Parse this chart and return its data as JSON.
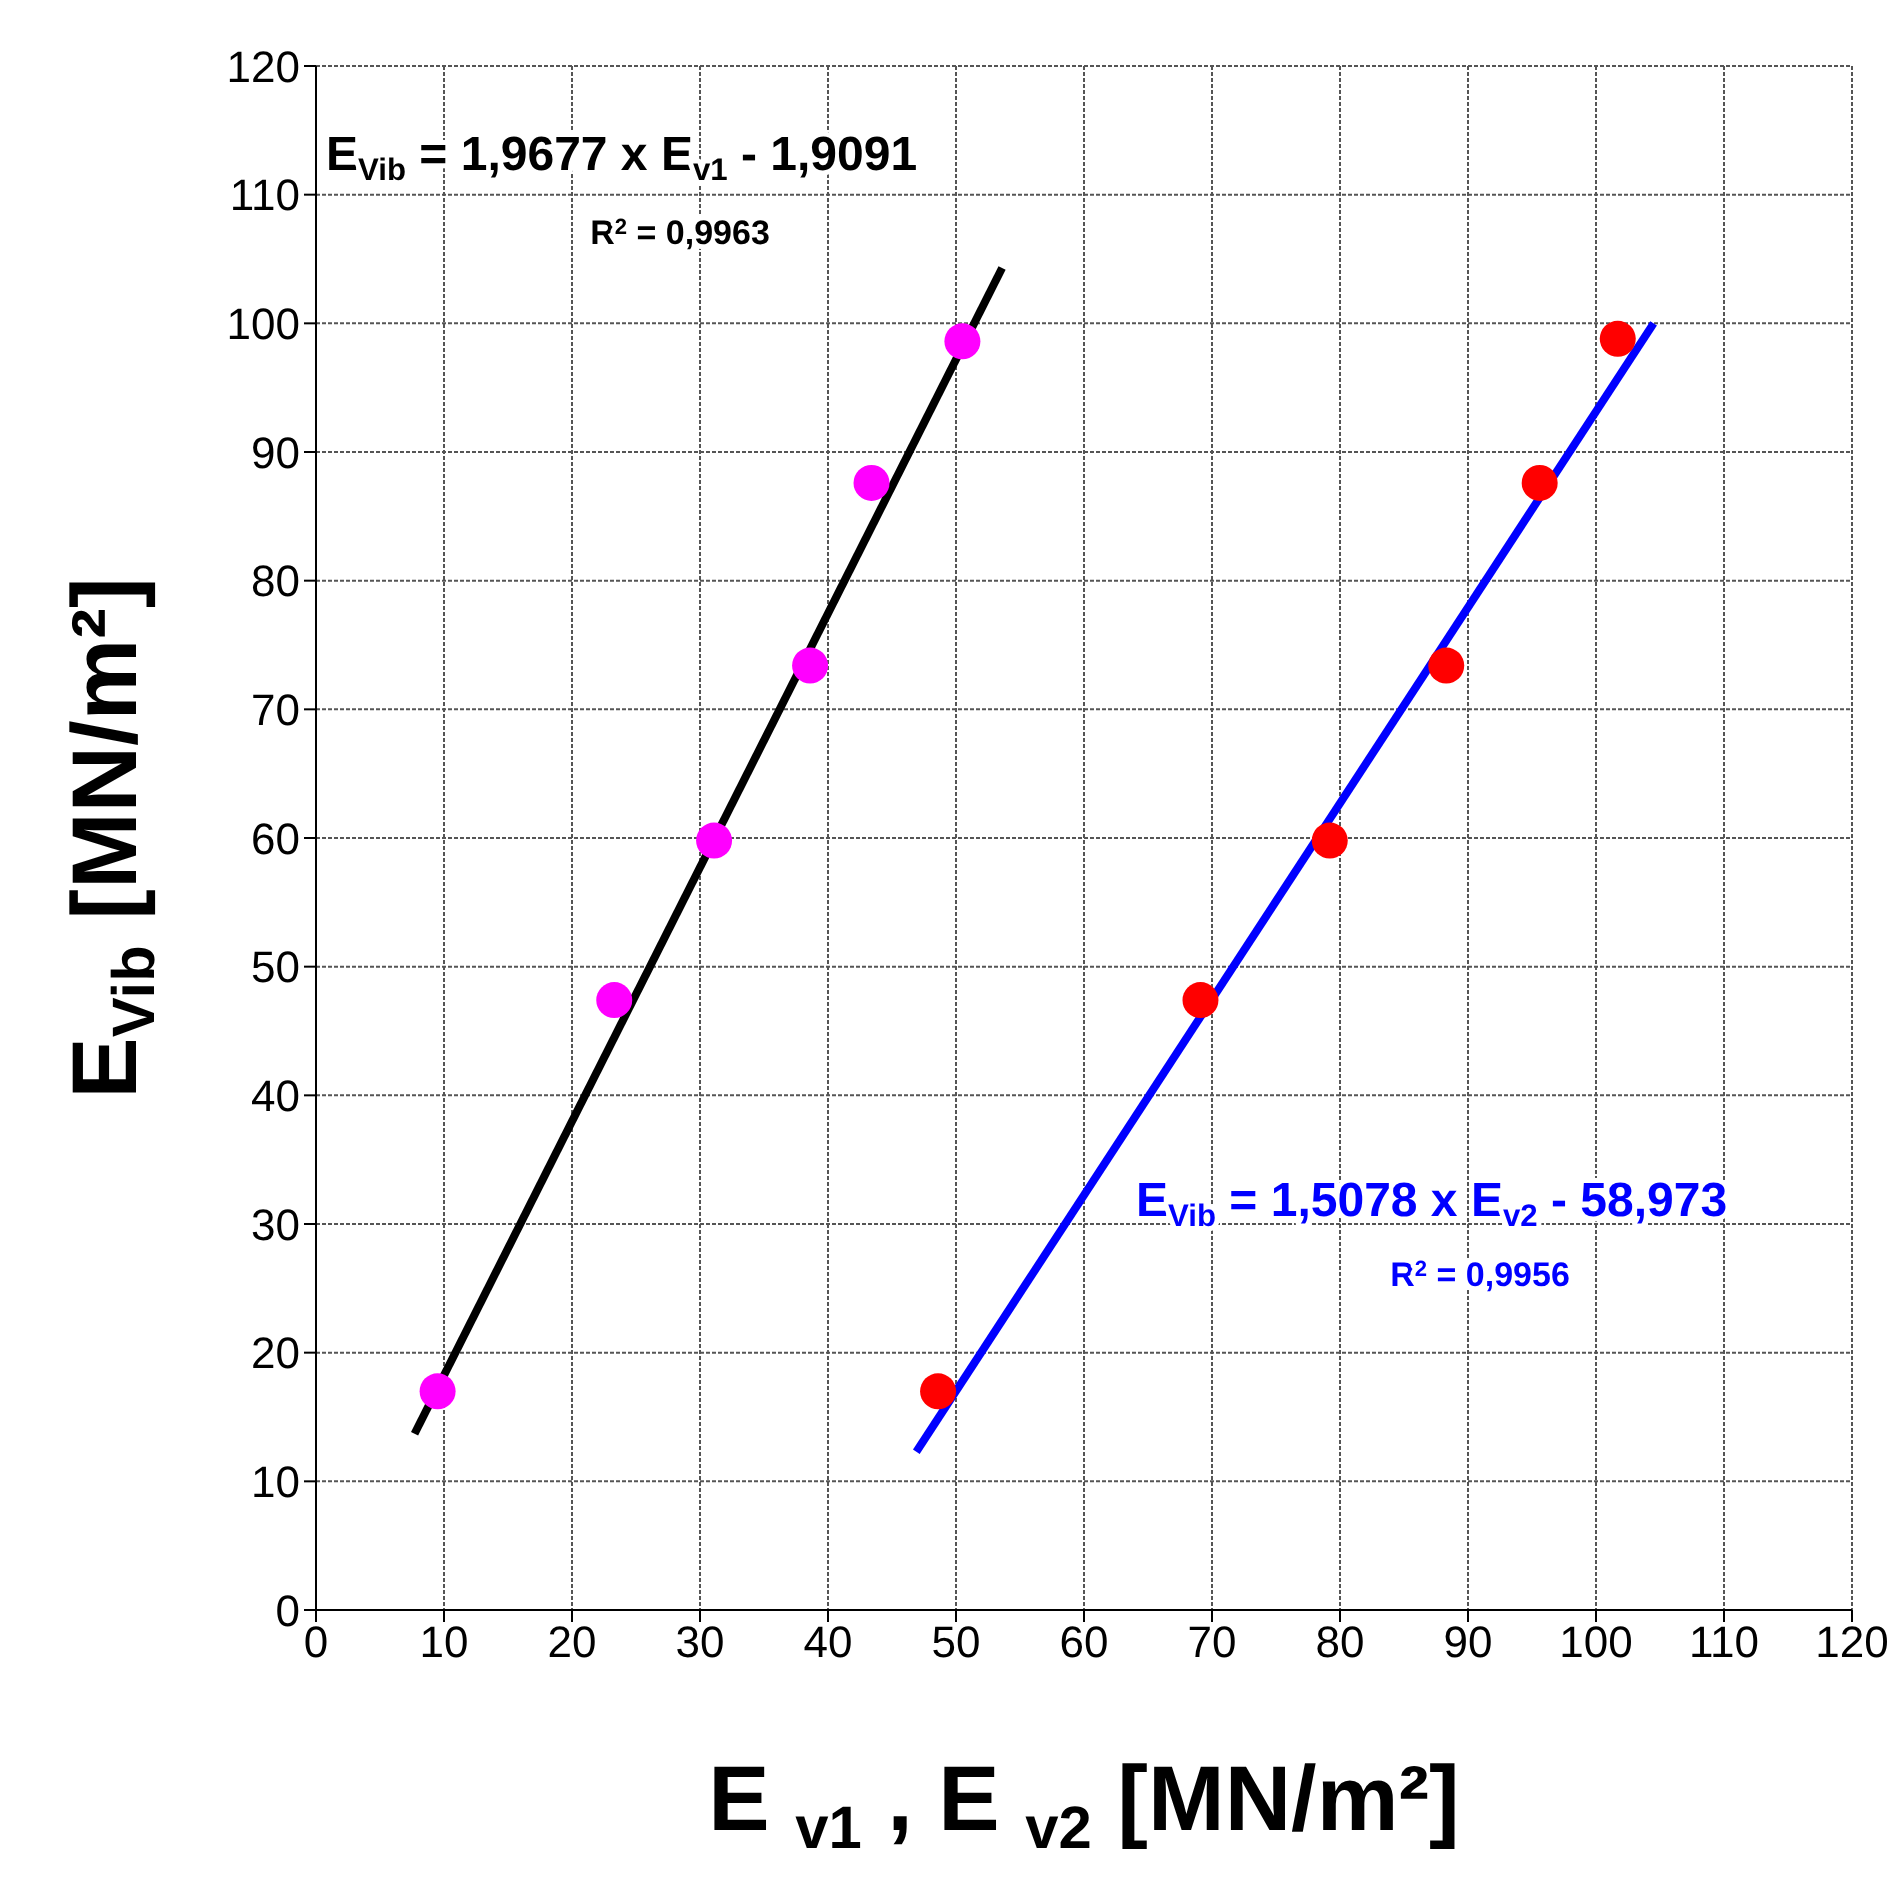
{
  "chart_data": {
    "type": "scatter",
    "xlabel": "E $_{v1}$ , E $_{v2}$ [MN/m²]",
    "ylabel": "E$_{Vib}$ [MN/m²]",
    "xlim": [
      0,
      120
    ],
    "ylim": [
      0,
      120
    ],
    "xticks": [
      0,
      10,
      20,
      30,
      40,
      50,
      60,
      70,
      80,
      90,
      100,
      110,
      120
    ],
    "yticks": [
      0,
      10,
      20,
      30,
      40,
      50,
      60,
      70,
      80,
      90,
      100,
      110,
      120
    ],
    "grid": true,
    "marker": "circle",
    "series": [
      {
        "color": "#ff00ff",
        "x": [
          9.5,
          23.3,
          31.1,
          38.6,
          43.4,
          50.5
        ],
        "values": [
          17,
          47.4,
          59.8,
          73.4,
          87.6,
          98.6
        ]
      },
      {
        "color": "#ff0000",
        "x": [
          48.6,
          69.1,
          79.2,
          88.3,
          95.6,
          101.7
        ],
        "values": [
          17,
          47.4,
          59.8,
          73.4,
          87.6,
          98.8
        ]
      },
      {
        "type": "line",
        "marker": "none",
        "color": "#000000",
        "x": [
          7.7,
          53.6
        ],
        "values": [
          13.7,
          104.3
        ]
      },
      {
        "type": "line",
        "marker": "none",
        "color": "#0000ff",
        "x": [
          46.9,
          104.5
        ],
        "values": [
          12.3,
          100
        ]
      }
    ],
    "annotations": [
      "E$_{Vib}$ = 1,9677 x E$_{v1}$ - 1,9091",
      "R$^{2}$ = 0,9963",
      "E$_{Vib}$ = 1,5078 x E$_{v2}$ - 58,973",
      "R$^{2}$ = 0,9956"
    ]
  }
}
